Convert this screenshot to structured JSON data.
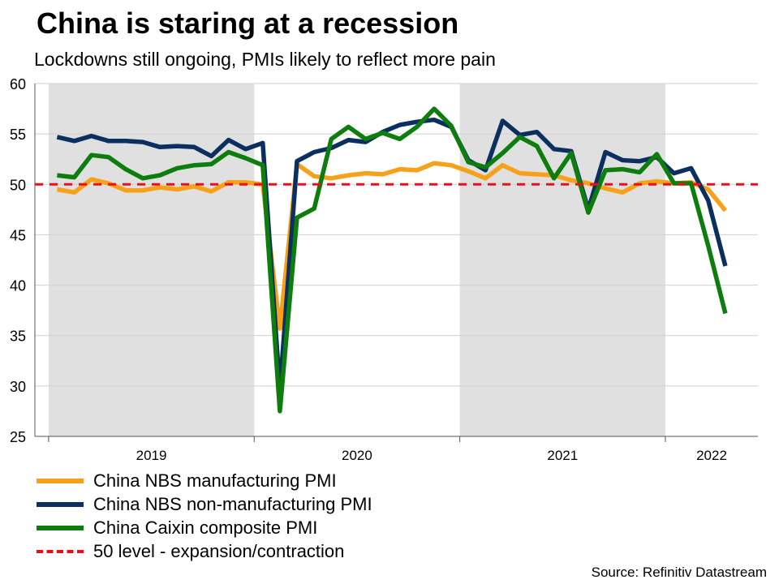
{
  "title": "China is staring at a recession",
  "subtitle": "Lockdowns still ongoing, PMIs likely to reflect more pain",
  "source": "Source: Refinitiv Datastream",
  "chart_data": {
    "type": "line",
    "ylim": [
      25,
      60
    ],
    "yticks": [
      25,
      30,
      35,
      40,
      45,
      50,
      55,
      60
    ],
    "grid": true,
    "x_start": "2019-01",
    "x_end": "2022-04",
    "year_labels": [
      "2019",
      "2020",
      "2021",
      "2022"
    ],
    "shaded_years": [
      "2019",
      "2021"
    ],
    "x": [
      "2019-01",
      "2019-02",
      "2019-03",
      "2019-04",
      "2019-05",
      "2019-06",
      "2019-07",
      "2019-08",
      "2019-09",
      "2019-10",
      "2019-11",
      "2019-12",
      "2020-01",
      "2020-02",
      "2020-03",
      "2020-04",
      "2020-05",
      "2020-06",
      "2020-07",
      "2020-08",
      "2020-09",
      "2020-10",
      "2020-11",
      "2020-12",
      "2021-01",
      "2021-02",
      "2021-03",
      "2021-04",
      "2021-05",
      "2021-06",
      "2021-07",
      "2021-08",
      "2021-09",
      "2021-10",
      "2021-11",
      "2021-12",
      "2022-01",
      "2022-02",
      "2022-03",
      "2022-04"
    ],
    "series": [
      {
        "name": "China NBS manufacturing PMI",
        "color": "#f7a11a",
        "values": [
          49.5,
          49.2,
          50.5,
          50.1,
          49.4,
          49.4,
          49.7,
          49.5,
          49.8,
          49.3,
          50.2,
          50.2,
          50.0,
          35.7,
          52.0,
          50.8,
          50.6,
          50.9,
          51.1,
          51.0,
          51.5,
          51.4,
          52.1,
          51.9,
          51.3,
          50.6,
          51.9,
          51.1,
          51.0,
          50.9,
          50.4,
          50.1,
          49.6,
          49.2,
          50.1,
          50.3,
          50.1,
          50.2,
          49.5,
          47.4
        ]
      },
      {
        "name": "China NBS non-manufacturing PMI",
        "color": "#0b2f5f",
        "values": [
          54.7,
          54.3,
          54.8,
          54.3,
          54.3,
          54.2,
          53.7,
          53.8,
          53.7,
          52.8,
          54.4,
          53.5,
          54.1,
          29.6,
          52.3,
          53.2,
          53.6,
          54.4,
          54.2,
          55.2,
          55.9,
          56.2,
          56.4,
          55.7,
          52.4,
          51.4,
          56.3,
          54.9,
          55.2,
          53.5,
          53.3,
          47.5,
          53.2,
          52.4,
          52.3,
          52.7,
          51.1,
          51.6,
          48.4,
          41.9
        ]
      },
      {
        "name": "China Caixin composite PMI",
        "color": "#0d7d0d",
        "values": [
          50.9,
          50.7,
          52.9,
          52.7,
          51.5,
          50.6,
          50.9,
          51.6,
          51.9,
          52.0,
          53.2,
          52.6,
          51.9,
          27.5,
          46.7,
          47.6,
          54.5,
          55.7,
          54.5,
          55.1,
          54.5,
          55.7,
          57.5,
          55.8,
          52.2,
          51.7,
          53.1,
          54.7,
          53.8,
          50.6,
          53.1,
          47.2,
          51.4,
          51.5,
          51.2,
          53.0,
          50.1,
          50.1,
          43.9,
          37.2
        ]
      }
    ],
    "reference_line": {
      "name": "50 level - expansion/contraction",
      "value": 50,
      "color": "#e8101a"
    }
  }
}
